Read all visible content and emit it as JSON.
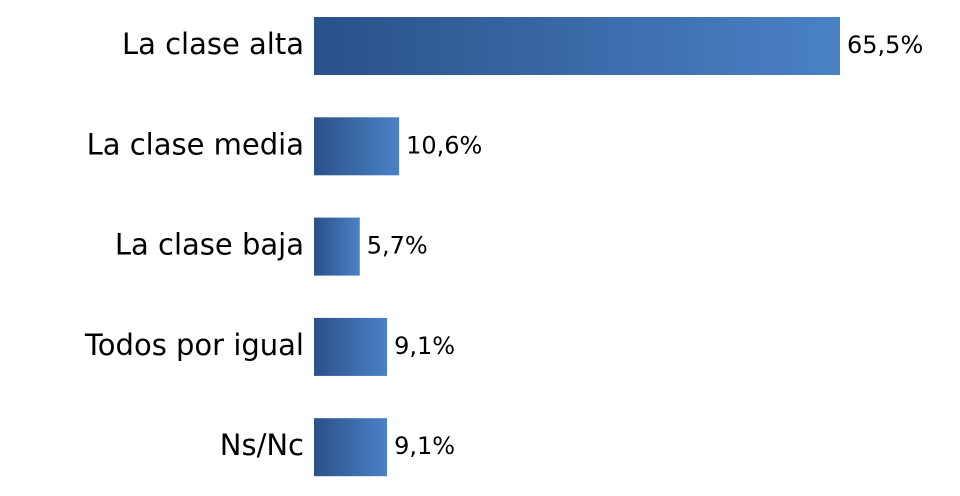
{
  "chart_data": {
    "type": "hbar",
    "categories": [
      "La clase alta",
      "La clase media",
      "La clase baja",
      "Todos por igual",
      "Ns/Nc"
    ],
    "values": [
      65.5,
      10.6,
      5.7,
      9.1,
      9.1
    ],
    "value_labels": [
      "65,5%",
      "10,6%",
      "5,7%",
      "9,1%",
      "9,1%"
    ],
    "gradient": [
      "#2a5189",
      "#4a82c6"
    ]
  }
}
